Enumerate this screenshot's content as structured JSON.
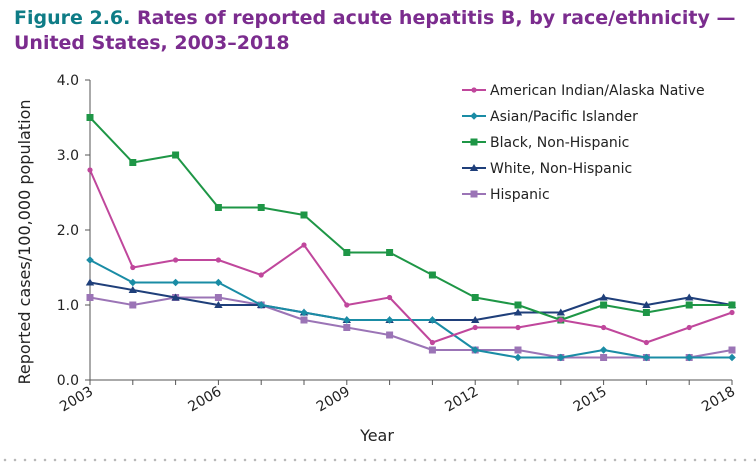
{
  "figure_label": "Figure 2.6.",
  "title": "Rates of reported acute hepatitis B, by race/ethnicity — United States, 2003–2018",
  "chart_data": {
    "type": "line",
    "xlabel": "Year",
    "ylabel": "Reported cases/100,000 population",
    "x": [
      2003,
      2004,
      2005,
      2006,
      2007,
      2008,
      2009,
      2010,
      2011,
      2012,
      2013,
      2014,
      2015,
      2016,
      2017,
      2018
    ],
    "xlim": [
      2003,
      2018
    ],
    "ylim": [
      0,
      4
    ],
    "x_ticks": [
      "2003",
      "2006",
      "2009",
      "2012",
      "2015",
      "2018"
    ],
    "y_ticks": [
      "0.0",
      "1.0",
      "2.0",
      "3.0",
      "4.0"
    ],
    "grid": false,
    "legend_position": "top-right",
    "series": [
      {
        "name": "American Indian/Alaska Native",
        "color": "#c0479c",
        "marker": "circle",
        "values": [
          2.8,
          1.5,
          1.6,
          1.6,
          1.4,
          1.8,
          1.0,
          1.1,
          0.5,
          0.7,
          0.7,
          0.8,
          0.7,
          0.5,
          0.7,
          0.9
        ]
      },
      {
        "name": "Asian/Pacific Islander",
        "color": "#1a8ca5",
        "marker": "diamond",
        "values": [
          1.6,
          1.3,
          1.3,
          1.3,
          1.0,
          0.9,
          0.8,
          0.8,
          0.8,
          0.4,
          0.3,
          0.3,
          0.4,
          0.3,
          0.3,
          0.3
        ]
      },
      {
        "name": "Black, Non-Hispanic",
        "color": "#1e9646",
        "marker": "square",
        "values": [
          3.5,
          2.9,
          3.0,
          2.3,
          2.3,
          2.2,
          1.7,
          1.7,
          1.4,
          1.1,
          1.0,
          0.8,
          1.0,
          0.9,
          1.0,
          1.0
        ]
      },
      {
        "name": "White, Non-Hispanic",
        "color": "#1f3f7a",
        "marker": "triangle",
        "values": [
          1.3,
          1.2,
          1.1,
          1.0,
          1.0,
          0.9,
          0.8,
          0.8,
          0.8,
          0.8,
          0.9,
          0.9,
          1.1,
          1.0,
          1.1,
          1.0
        ]
      },
      {
        "name": "Hispanic",
        "color": "#9b74b6",
        "marker": "square",
        "values": [
          1.1,
          1.0,
          1.1,
          1.1,
          1.0,
          0.8,
          0.7,
          0.6,
          0.4,
          0.4,
          0.4,
          0.3,
          0.3,
          0.3,
          0.3,
          0.4
        ]
      }
    ]
  }
}
